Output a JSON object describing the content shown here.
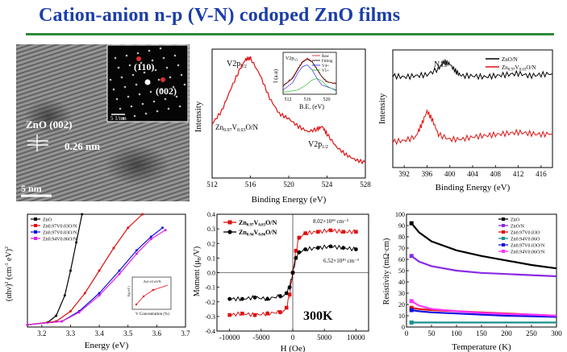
{
  "slide": {
    "title": "Cation-anion n-p (V-N) codoped ZnO films"
  },
  "tem": {
    "inset_labels": [
      "(110)",
      "(002)"
    ],
    "inset_scale": "5 1/nm",
    "lattice_label": "ZnO (002)",
    "spacing_label": "0.26 nm",
    "scale_label": "5 nm"
  },
  "xps_v": {
    "ylabel": "Intensity",
    "xlabel": "Binding Energy (eV)",
    "xticks": [
      "512",
      "516",
      "520",
      "524",
      "528"
    ],
    "peak1_label": "V2p3/2",
    "peak2_label": "V2p1/2",
    "sample_label": "Zn0.97V0.03O/N",
    "inset": {
      "ylabel": "I (a.u)",
      "xlabel": "B.E. (eV)",
      "xticks": [
        "512",
        "516",
        "520"
      ],
      "peak_label": "V2p3/2",
      "legend": [
        "Raw",
        "Fitting",
        "V4+",
        "V5+"
      ]
    }
  },
  "xps_n": {
    "ylabel": "Intensity",
    "xlabel": "Binding Energy (eV)",
    "xticks": [
      "392",
      "396",
      "400",
      "404",
      "408",
      "412",
      "416"
    ],
    "peak_label": "N1s",
    "legend": [
      "ZnO/N",
      "Zn0.97V0.03O/N"
    ]
  },
  "absorption": {
    "ylabel": "(αhν)² (cm⁻¹ eV)²",
    "xlabel": "Energy (eV)",
    "xticks": [
      "3.2",
      "3.3",
      "3.4",
      "3.5",
      "3.6",
      "3.7"
    ],
    "legend": [
      "ZnO",
      "Zn0.97V0.03O/N",
      "Zn0.97V0.03O/N",
      "Zn0.94V0.06O/N"
    ],
    "inset": {
      "xlabel": "V Concentration (%)",
      "ylabel": "Eg (eV)",
      "legend": "Zn1-xVxO/N"
    }
  },
  "magnet": {
    "ylabel": "Moment (μB/V)",
    "xlabel": "H (Oe)",
    "xticks": [
      "-10000",
      "-5000",
      "0",
      "5000",
      "10000"
    ],
    "yticks": [
      "0.4",
      "0.3",
      "0.2",
      "0.1",
      "0.0",
      "-0.1",
      "-0.2",
      "-0.3",
      "-0.4"
    ],
    "legend": [
      "Zn0.97V0.03O/N",
      "Zn0.94V0.06O/N"
    ],
    "annot_top": "8.02×10¹⁹ cm⁻³",
    "annot_bottom": "6.52×10¹⁹ cm⁻³",
    "temp_label": "300K"
  },
  "resistivity": {
    "ylabel": "Resistivity (mΩ·cm)",
    "xlabel": "Temperature (K)",
    "xticks": [
      "0",
      "50",
      "100",
      "150",
      "200",
      "250",
      "300"
    ],
    "yticks": [
      "100",
      "90",
      "80",
      "70",
      "60",
      "50",
      "40",
      "30",
      "20",
      "10",
      "0"
    ],
    "legend": [
      "ZnO",
      "ZnO/N",
      "Zn0.97V0.03O",
      "Zn0.94V0.06O",
      "Zn0.97V0.03O/N",
      "Zn0.94V0.06O/N"
    ]
  },
  "chart_data": [
    {
      "type": "line",
      "title": "",
      "xlabel": "Binding Energy (eV)",
      "ylabel": "Intensity",
      "xlim": [
        512,
        528
      ],
      "series": [
        {
          "name": "Zn0.97V0.03O/N",
          "color": "#e01010",
          "x": [
            512,
            513,
            514,
            515,
            515.5,
            516,
            517,
            518,
            519,
            520,
            521,
            522,
            523,
            523.5,
            524,
            525,
            526,
            527,
            528
          ],
          "y": [
            0.42,
            0.52,
            0.7,
            0.86,
            0.92,
            0.93,
            0.8,
            0.62,
            0.5,
            0.46,
            0.4,
            0.36,
            0.38,
            0.4,
            0.34,
            0.24,
            0.18,
            0.14,
            0.12
          ]
        }
      ]
    },
    {
      "type": "line",
      "title": "",
      "xlabel": "Binding Energy (eV)",
      "ylabel": "Intensity",
      "xlim": [
        390,
        418
      ],
      "series": [
        {
          "name": "ZnO/N",
          "color": "#000000",
          "x": [
            390,
            392,
            394,
            396,
            398,
            399,
            400,
            401,
            402,
            404,
            406,
            408,
            410,
            412,
            414,
            416,
            418
          ],
          "y": [
            0.78,
            0.77,
            0.78,
            0.79,
            0.84,
            0.9,
            0.88,
            0.82,
            0.78,
            0.78,
            0.77,
            0.78,
            0.79,
            0.8,
            0.78,
            0.79,
            0.8
          ]
        },
        {
          "name": "Zn0.97V0.03O/N",
          "color": "#e01010",
          "x": [
            390,
            392,
            394,
            395,
            396,
            397,
            398,
            400,
            402,
            404,
            406,
            408,
            410,
            412,
            414,
            416,
            418
          ],
          "y": [
            0.22,
            0.23,
            0.26,
            0.36,
            0.48,
            0.4,
            0.28,
            0.24,
            0.24,
            0.26,
            0.27,
            0.28,
            0.29,
            0.3,
            0.29,
            0.28,
            0.29
          ]
        }
      ]
    },
    {
      "type": "line",
      "title": "",
      "xlabel": "Energy (eV)",
      "ylabel": "(αhν)² (cm⁻¹ eV)²",
      "xlim": [
        3.15,
        3.7
      ],
      "series": [
        {
          "name": "ZnO",
          "color": "#000000",
          "x": [
            3.15,
            3.22,
            3.25,
            3.28,
            3.3,
            3.32,
            3.34
          ],
          "y": [
            0.02,
            0.04,
            0.1,
            0.28,
            0.5,
            0.75,
            1.0
          ]
        },
        {
          "name": "Zn0.97V0.03O/N",
          "color": "#e01010",
          "x": [
            3.15,
            3.25,
            3.3,
            3.35,
            3.4,
            3.45,
            3.5,
            3.55
          ],
          "y": [
            0.02,
            0.05,
            0.14,
            0.3,
            0.5,
            0.7,
            0.88,
            1.0
          ]
        },
        {
          "name": "Zn0.97V0.03O/N",
          "color": "#1010e0",
          "x": [
            3.15,
            3.27,
            3.33,
            3.4,
            3.47,
            3.53,
            3.58,
            3.62
          ],
          "y": [
            0.02,
            0.05,
            0.14,
            0.3,
            0.5,
            0.68,
            0.8,
            0.88
          ]
        },
        {
          "name": "Zn0.94V0.06O/N",
          "color": "#e020e0",
          "x": [
            3.15,
            3.27,
            3.33,
            3.4,
            3.47,
            3.53,
            3.58,
            3.63
          ],
          "y": [
            0.02,
            0.05,
            0.13,
            0.28,
            0.47,
            0.65,
            0.78,
            0.86
          ]
        }
      ]
    },
    {
      "type": "scatter",
      "title": "",
      "xlabel": "H (Oe)",
      "ylabel": "Moment (μB/V)",
      "xlim": [
        -12000,
        12000
      ],
      "ylim": [
        -0.4,
        0.4
      ],
      "series": [
        {
          "name": "Zn0.97V0.03O/N",
          "color": "#e01010",
          "x": [
            -10000,
            -8000,
            -6000,
            -4000,
            -2000,
            -1000,
            -500,
            0,
            500,
            1000,
            2000,
            4000,
            6000,
            8000,
            10000
          ],
          "y": [
            -0.29,
            -0.28,
            -0.29,
            -0.28,
            -0.27,
            -0.24,
            -0.15,
            0.0,
            0.15,
            0.24,
            0.27,
            0.28,
            0.29,
            0.28,
            0.28
          ]
        },
        {
          "name": "Zn0.94V0.06O/N",
          "color": "#000000",
          "x": [
            -10000,
            -8000,
            -6000,
            -4000,
            -2000,
            -1000,
            -500,
            0,
            500,
            1000,
            2000,
            4000,
            6000,
            8000,
            10000
          ],
          "y": [
            -0.18,
            -0.18,
            -0.17,
            -0.18,
            -0.16,
            -0.14,
            -0.1,
            0.0,
            0.1,
            0.14,
            0.16,
            0.17,
            0.18,
            0.17,
            0.16
          ]
        }
      ]
    },
    {
      "type": "line",
      "title": "",
      "xlabel": "Temperature (K)",
      "ylabel": "Resistivity (mΩ·cm)",
      "xlim": [
        0,
        300
      ],
      "ylim": [
        0,
        100
      ],
      "series": [
        {
          "name": "ZnO",
          "color": "#000000",
          "x": [
            10,
            25,
            50,
            100,
            150,
            200,
            250,
            300
          ],
          "y": [
            92,
            84,
            76,
            68,
            63,
            59,
            55,
            52
          ]
        },
        {
          "name": "ZnO/N",
          "color": "#8a2be2",
          "x": [
            10,
            25,
            50,
            100,
            150,
            200,
            250,
            300
          ],
          "y": [
            63,
            58,
            54,
            50,
            48,
            47,
            46,
            45
          ]
        },
        {
          "name": "Zn0.97V0.03O",
          "color": "#e01010",
          "x": [
            10,
            25,
            50,
            100,
            150,
            200,
            250,
            300
          ],
          "y": [
            17,
            16,
            15,
            14,
            13,
            12,
            11,
            10
          ]
        },
        {
          "name": "Zn0.94V0.06O",
          "color": "#1a8f8f",
          "x": [
            10,
            25,
            50,
            100,
            150,
            200,
            250,
            300
          ],
          "y": [
            4,
            4,
            4,
            4,
            4,
            4,
            4,
            4
          ]
        },
        {
          "name": "Zn0.97V0.03O/N",
          "color": "#1010e0",
          "x": [
            10,
            25,
            50,
            100,
            150,
            200,
            250,
            300
          ],
          "y": [
            15,
            14,
            13,
            12,
            11,
            10,
            9.5,
            9
          ]
        },
        {
          "name": "Zn0.94V0.06O/N",
          "color": "#ff30ff",
          "x": [
            10,
            25,
            50,
            100,
            150,
            200,
            250,
            300
          ],
          "y": [
            23,
            19,
            16,
            14,
            12.5,
            11.5,
            11,
            10
          ]
        }
      ]
    }
  ]
}
